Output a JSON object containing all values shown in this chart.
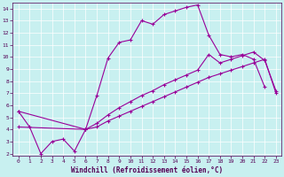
{
  "xlabel": "Windchill (Refroidissement éolien,°C)",
  "bg_color": "#c8f0f0",
  "line_color": "#990099",
  "xlim": [
    -0.5,
    23.5
  ],
  "ylim": [
    1.8,
    14.5
  ],
  "yticks": [
    2,
    3,
    4,
    5,
    6,
    7,
    8,
    9,
    10,
    11,
    12,
    13,
    14
  ],
  "xticks": [
    0,
    1,
    2,
    3,
    4,
    5,
    6,
    7,
    8,
    9,
    10,
    11,
    12,
    13,
    14,
    15,
    16,
    17,
    18,
    19,
    20,
    21,
    22,
    23
  ],
  "line1_x": [
    0,
    1,
    2,
    3,
    4,
    5,
    6,
    7,
    8,
    9,
    10,
    11,
    12,
    13,
    14,
    15,
    16,
    17,
    18,
    19,
    20,
    21,
    22
  ],
  "line1_y": [
    5.5,
    4.2,
    2.0,
    3.0,
    3.2,
    2.2,
    4.0,
    6.8,
    9.9,
    11.2,
    11.4,
    13.0,
    12.7,
    13.5,
    13.8,
    14.1,
    14.3,
    11.8,
    10.2,
    10.0,
    10.2,
    9.8,
    7.5
  ],
  "line2_x": [
    0,
    6,
    7,
    8,
    9,
    10,
    11,
    12,
    13,
    14,
    15,
    16,
    17,
    18,
    19,
    20,
    21,
    22,
    23
  ],
  "line2_y": [
    5.5,
    4.0,
    4.5,
    5.2,
    5.8,
    6.3,
    6.8,
    7.2,
    7.7,
    8.1,
    8.5,
    8.9,
    10.2,
    9.5,
    9.8,
    10.1,
    10.4,
    9.7,
    7.2
  ],
  "line3_x": [
    0,
    6,
    7,
    8,
    9,
    10,
    11,
    12,
    13,
    14,
    15,
    16,
    17,
    18,
    19,
    20,
    21,
    22,
    23
  ],
  "line3_y": [
    4.2,
    4.0,
    4.2,
    4.7,
    5.1,
    5.5,
    5.9,
    6.3,
    6.7,
    7.1,
    7.5,
    7.9,
    8.3,
    8.6,
    8.9,
    9.2,
    9.5,
    9.8,
    7.0
  ]
}
